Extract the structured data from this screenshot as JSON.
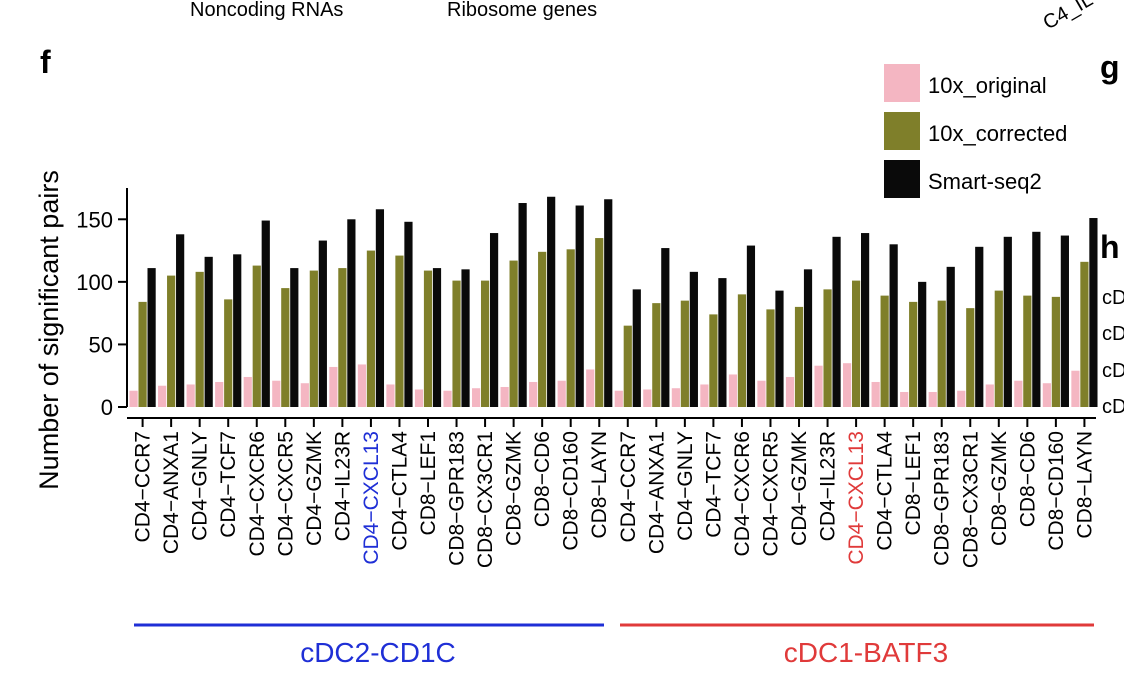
{
  "chart_data": {
    "type": "bar",
    "panel_label": "f",
    "neighbor_panel_labels": [
      "g",
      "h"
    ],
    "top_fragments": [
      "Noncoding RNAs",
      "Ribosome genes",
      "C4_IL"
    ],
    "right_fragments": [
      "cD",
      "cD",
      "cD",
      "cD"
    ],
    "ylabel": "Number of significant pairs",
    "ylim": [
      0,
      175
    ],
    "yticks": [
      0,
      50,
      100,
      150
    ],
    "grid": false,
    "legend_position": "top-right",
    "colors": {
      "10x_original": "#f4b6c2",
      "10x_corrected": "#7f7f2a",
      "Smart-seq2": "#0a0a0a",
      "group1": "#1f2fd6",
      "group2": "#e03a3a"
    },
    "groups": [
      {
        "name": "cDC2-CD1C",
        "color": "#1f2fd6",
        "highlight": "CD4-CXCL13"
      },
      {
        "name": "cDC1-BATF3",
        "color": "#e03a3a",
        "highlight": "CD4-CXCL13"
      }
    ],
    "categories": [
      "CD4-CCR7",
      "CD4-ANXA1",
      "CD4-GNLY",
      "CD4-TCF7",
      "CD4-CXCR6",
      "CD4-CXCR5",
      "CD4-GZMK",
      "CD4-IL23R",
      "CD4-CXCL13",
      "CD4-CTLA4",
      "CD8-LEF1",
      "CD8-GPR183",
      "CD8-CX3CR1",
      "CD8-GZMK",
      "CD8-CD6",
      "CD8-CD160",
      "CD8-LAYN",
      "CD4-CCR7",
      "CD4-ANXA1",
      "CD4-GNLY",
      "CD4-TCF7",
      "CD4-CXCR6",
      "CD4-CXCR5",
      "CD4-GZMK",
      "CD4-IL23R",
      "CD4-CXCL13",
      "CD4-CTLA4",
      "CD8-LEF1",
      "CD8-GPR183",
      "CD8-CX3CR1",
      "CD8-GZMK",
      "CD8-CD6",
      "CD8-CD160",
      "CD8-LAYN"
    ],
    "series": [
      {
        "name": "10x_original",
        "values": [
          13,
          17,
          18,
          20,
          24,
          21,
          19,
          32,
          34,
          18,
          14,
          13,
          15,
          16,
          20,
          21,
          30,
          13,
          14,
          15,
          18,
          26,
          21,
          24,
          33,
          35,
          20,
          12,
          12,
          13,
          18,
          21,
          19,
          29
        ]
      },
      {
        "name": "10x_corrected",
        "values": [
          84,
          105,
          108,
          86,
          113,
          95,
          109,
          111,
          125,
          121,
          109,
          101,
          101,
          117,
          124,
          126,
          135,
          65,
          83,
          85,
          74,
          90,
          78,
          80,
          94,
          101,
          89,
          84,
          85,
          79,
          93,
          89,
          88,
          116
        ]
      },
      {
        "name": "Smart-seq2",
        "values": [
          111,
          138,
          120,
          122,
          149,
          111,
          133,
          150,
          158,
          148,
          111,
          110,
          139,
          163,
          168,
          161,
          166,
          94,
          127,
          108,
          103,
          129,
          93,
          110,
          136,
          139,
          130,
          100,
          112,
          128,
          136,
          140,
          137,
          151
        ]
      }
    ]
  }
}
